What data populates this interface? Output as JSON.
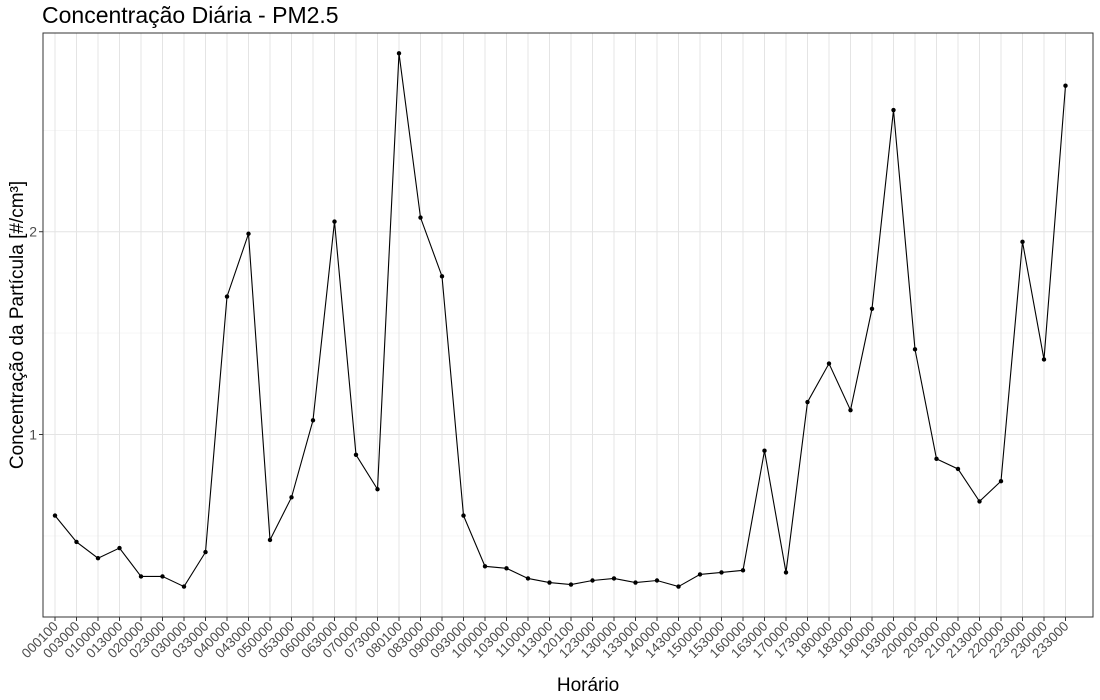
{
  "chart_data": {
    "type": "line",
    "title": "Concentração Diária - PM2.5",
    "xlabel": "Horário",
    "ylabel": "Concentração da Partícula [#/cm³]",
    "ylim": [
      0.1,
      2.98
    ],
    "yticks": [
      1,
      2
    ],
    "grid": true,
    "x_tick_labels": [
      "000100",
      "003000",
      "010000",
      "013000",
      "020000",
      "023000",
      "030000",
      "033000",
      "040000",
      "043000",
      "050000",
      "053000",
      "060000",
      "063000",
      "070000",
      "073000",
      "080100",
      "083000",
      "090000",
      "093000",
      "100000",
      "103000",
      "110000",
      "113000",
      "120100",
      "123000",
      "130000",
      "133000",
      "140000",
      "143000",
      "150000",
      "153000",
      "160000",
      "163000",
      "170000",
      "173000",
      "180000",
      "183000",
      "190000",
      "193000",
      "200000",
      "203000",
      "210000",
      "213000",
      "220000",
      "223000",
      "230000",
      "233000"
    ],
    "series": [
      {
        "name": "PM2.5",
        "values": [
          0.6,
          0.47,
          0.39,
          0.44,
          0.3,
          0.3,
          0.25,
          0.42,
          1.68,
          1.99,
          0.48,
          0.69,
          1.07,
          2.05,
          0.9,
          0.73,
          2.88,
          2.07,
          1.78,
          0.6,
          0.35,
          0.34,
          0.29,
          0.27,
          0.26,
          0.28,
          0.29,
          0.27,
          0.28,
          0.25,
          0.31,
          0.32,
          0.33,
          0.92,
          0.32,
          1.16,
          1.35,
          1.12,
          1.62,
          2.6,
          1.42,
          0.88,
          0.83,
          0.67,
          0.77,
          1.95,
          1.37,
          2.72
        ]
      }
    ]
  }
}
